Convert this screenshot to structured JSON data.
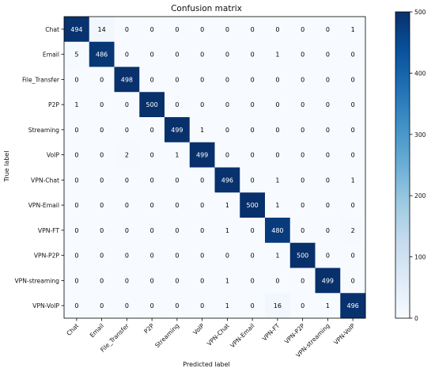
{
  "chart_data": {
    "type": "heatmap",
    "title": "Confusion matrix",
    "xlabel": "Predicted label",
    "ylabel": "True label",
    "x_categories": [
      "Chat",
      "Email",
      "File_Transfer",
      "P2P",
      "Streaming",
      "VoIP",
      "VPN-Chat",
      "VPN-Email",
      "VPN-FT",
      "VPN-P2P",
      "VPN-streaming",
      "VPN-VoIP"
    ],
    "y_categories": [
      "Chat",
      "Email",
      "File_Transfer",
      "P2P",
      "Streaming",
      "VoIP",
      "VPN-Chat",
      "VPN-Email",
      "VPN-FT",
      "VPN-P2P",
      "VPN-streaming",
      "VPN-VoIP"
    ],
    "matrix": [
      [
        494,
        14,
        0,
        0,
        0,
        0,
        0,
        0,
        0,
        0,
        0,
        1
      ],
      [
        5,
        486,
        0,
        0,
        0,
        0,
        0,
        0,
        1,
        0,
        0,
        0
      ],
      [
        0,
        0,
        498,
        0,
        0,
        0,
        0,
        0,
        0,
        0,
        0,
        0
      ],
      [
        1,
        0,
        0,
        500,
        0,
        0,
        0,
        0,
        0,
        0,
        0,
        0
      ],
      [
        0,
        0,
        0,
        0,
        499,
        1,
        0,
        0,
        0,
        0,
        0,
        0
      ],
      [
        0,
        0,
        2,
        0,
        1,
        499,
        0,
        0,
        0,
        0,
        0,
        0
      ],
      [
        0,
        0,
        0,
        0,
        0,
        0,
        496,
        0,
        1,
        0,
        0,
        1
      ],
      [
        0,
        0,
        0,
        0,
        0,
        0,
        1,
        500,
        1,
        0,
        0,
        0
      ],
      [
        0,
        0,
        0,
        0,
        0,
        0,
        1,
        0,
        480,
        0,
        0,
        2
      ],
      [
        0,
        0,
        0,
        0,
        0,
        0,
        0,
        0,
        1,
        500,
        0,
        0
      ],
      [
        0,
        0,
        0,
        0,
        0,
        0,
        1,
        0,
        0,
        0,
        499,
        0
      ],
      [
        0,
        0,
        0,
        0,
        0,
        0,
        1,
        0,
        16,
        0,
        1,
        496
      ]
    ],
    "colorbar": {
      "range": [
        0,
        500
      ],
      "ticks": [
        0,
        100,
        200,
        300,
        400,
        500
      ],
      "colormap": "Blues",
      "low_color": "#f7fbff",
      "high_color": "#08306b"
    },
    "grid": false
  }
}
